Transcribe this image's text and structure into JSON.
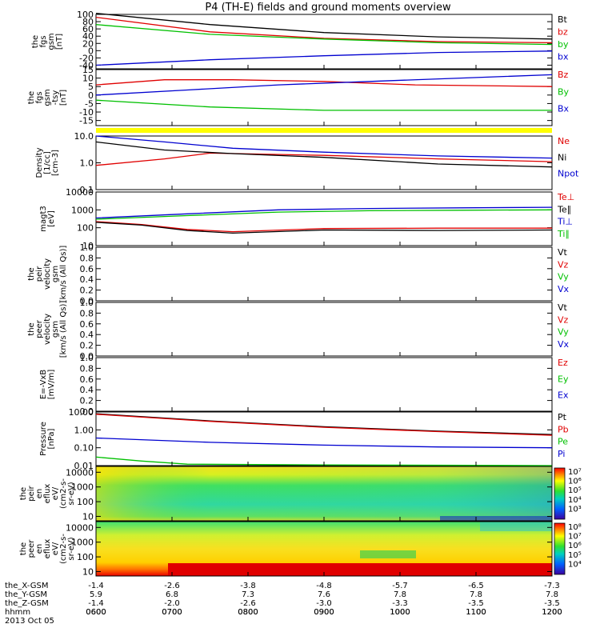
{
  "title": "P4 (TH-E) fields and ground moments overview",
  "colors": {
    "black": "#000000",
    "red": "#e00000",
    "green": "#00c000",
    "blue": "#0000d0",
    "yellow": "#ffff00"
  },
  "chart_data": {
    "type": "line",
    "time_ticks": [
      "0600",
      "0700",
      "0800",
      "0900",
      "1000",
      "1100",
      "1200"
    ],
    "ephemeris": [
      {
        "label": "the_X-GSM",
        "values": [
          "-1.4",
          "-2.6",
          "-3.8",
          "-4.8",
          "-5.7",
          "-6.5",
          "-7.3"
        ]
      },
      {
        "label": "the_Y-GSM",
        "values": [
          "5.9",
          "6.8",
          "7.3",
          "7.6",
          "7.8",
          "7.8",
          "7.8"
        ]
      },
      {
        "label": "the_Z-GSM",
        "values": [
          "-1.4",
          "-2.0",
          "-2.6",
          "-3.0",
          "-3.3",
          "-3.5",
          "-3.5"
        ]
      },
      {
        "label": "hhmm",
        "values": []
      }
    ],
    "date": "2013 Oct 05",
    "panels": [
      {
        "ylabel": [
          "the",
          "fgs",
          "gsm",
          "[nT]"
        ],
        "scale": "linear",
        "ylim": [
          -50,
          100
        ],
        "ticks": [
          {
            "v": 100,
            "l": "100"
          },
          {
            "v": 80,
            "l": "80"
          },
          {
            "v": 60,
            "l": "60"
          },
          {
            "v": 40,
            "l": "40"
          },
          {
            "v": 20,
            "l": "20"
          },
          {
            "v": 0,
            "l": "0"
          },
          {
            "v": -20,
            "l": "-20"
          },
          {
            "v": -40,
            "l": "-40"
          }
        ],
        "series": [
          {
            "name": "Bt",
            "color": "#000000",
            "x": [
              0,
              0.25,
              0.5,
              0.75,
              1
            ],
            "y": [
              103,
              72,
              50,
              38,
              32
            ]
          },
          {
            "name": "bz",
            "color": "#e00000",
            "x": [
              0,
              0.25,
              0.5,
              0.75,
              1
            ],
            "y": [
              92,
              52,
              34,
              25,
              22
            ]
          },
          {
            "name": "by",
            "color": "#00c000",
            "x": [
              0,
              0.25,
              0.5,
              0.75,
              1
            ],
            "y": [
              72,
              45,
              32,
              22,
              17
            ]
          },
          {
            "name": "bx",
            "color": "#0000d0",
            "x": [
              0,
              0.25,
              0.5,
              0.75,
              1
            ],
            "y": [
              -40,
              -25,
              -14,
              -5,
              -1
            ]
          }
        ]
      },
      {
        "ylabel": [
          "the",
          "fgs",
          "gsm",
          "-tsy",
          "[nT]"
        ],
        "scale": "linear",
        "ylim": [
          -18,
          15
        ],
        "ticks": [
          {
            "v": 15,
            "l": "15"
          },
          {
            "v": 10,
            "l": "10"
          },
          {
            "v": 5,
            "l": "5"
          },
          {
            "v": 0,
            "l": "0"
          },
          {
            "v": -5,
            "l": "-5"
          },
          {
            "v": -10,
            "l": "-10"
          },
          {
            "v": -15,
            "l": "-15"
          }
        ],
        "series": [
          {
            "name": "Bz",
            "color": "#e00000",
            "x": [
              0,
              0.15,
              0.3,
              0.5,
              0.7,
              1
            ],
            "y": [
              6,
              9,
              9,
              8,
              6,
              5
            ]
          },
          {
            "name": "By",
            "color": "#00c000",
            "x": [
              0,
              0.25,
              0.5,
              0.75,
              1
            ],
            "y": [
              -3,
              -7,
              -9,
              -9,
              -9
            ]
          },
          {
            "name": "Bx",
            "color": "#0000d0",
            "x": [
              0,
              0.2,
              0.4,
              0.6,
              0.8,
              1
            ],
            "y": [
              0,
              3,
              6,
              8,
              10,
              12
            ]
          }
        ]
      },
      {
        "ylabel": [
          "Density",
          "[1/cc]",
          "[cm-3]"
        ],
        "scale": "log",
        "ylim": [
          0.1,
          10
        ],
        "ticks": [
          {
            "v": 10,
            "l": "10.0"
          },
          {
            "v": 1,
            "l": "1.0"
          },
          {
            "v": 0.1,
            "l": "0.1"
          }
        ],
        "series": [
          {
            "name": "Ne",
            "color": "#e00000",
            "x": [
              0,
              0.15,
              0.25,
              0.5,
              0.75,
              1
            ],
            "y": [
              0.8,
              1.4,
              2.3,
              1.9,
              1.4,
              1.1
            ]
          },
          {
            "name": "Ni",
            "color": "#000000",
            "x": [
              0,
              0.15,
              0.3,
              0.5,
              0.75,
              1
            ],
            "y": [
              6,
              3,
              2.2,
              1.6,
              0.9,
              0.7
            ]
          },
          {
            "name": "Npot",
            "color": "#0000d0",
            "x": [
              0,
              0.15,
              0.3,
              0.5,
              0.75,
              1
            ],
            "y": [
              10,
              6,
              3.5,
              2.5,
              1.8,
              1.5
            ]
          }
        ]
      },
      {
        "ylabel": [
          "magt3",
          "[eV]"
        ],
        "scale": "log",
        "ylim": [
          10,
          10000
        ],
        "ticks": [
          {
            "v": 10000,
            "l": "10000"
          },
          {
            "v": 1000,
            "l": "1000"
          },
          {
            "v": 100,
            "l": "100"
          },
          {
            "v": 10,
            "l": "10"
          }
        ],
        "series": [
          {
            "name": "Te⊥",
            "color": "#e00000",
            "x": [
              0,
              0.1,
              0.2,
              0.3,
              0.5,
              0.75,
              1
            ],
            "y": [
              220,
              150,
              80,
              60,
              90,
              95,
              95
            ]
          },
          {
            "name": "Te∥",
            "color": "#000000",
            "x": [
              0,
              0.1,
              0.2,
              0.3,
              0.5,
              0.75,
              1
            ],
            "y": [
              200,
              140,
              70,
              50,
              75,
              70,
              75
            ]
          },
          {
            "name": "Ti⊥",
            "color": "#0000d0",
            "x": [
              0,
              0.2,
              0.4,
              0.6,
              0.8,
              1
            ],
            "y": [
              350,
              600,
              1000,
              1200,
              1300,
              1400
            ]
          },
          {
            "name": "Ti∥",
            "color": "#00c000",
            "x": [
              0,
              0.2,
              0.4,
              0.6,
              0.8,
              1
            ],
            "y": [
              300,
              480,
              750,
              900,
              950,
              1000
            ]
          }
        ]
      },
      {
        "ylabel": [
          "the",
          "peir",
          "velocity",
          "gsm",
          "[km/s (All Qs)]"
        ],
        "scale": "linear",
        "ylim": [
          0,
          1
        ],
        "ticks": [
          {
            "v": 1,
            "l": "1.0"
          },
          {
            "v": 0.8,
            "l": "0.8"
          },
          {
            "v": 0.6,
            "l": "0.6"
          },
          {
            "v": 0.4,
            "l": "0.4"
          },
          {
            "v": 0.2,
            "l": "0.2"
          },
          {
            "v": 0,
            "l": "0.0"
          }
        ],
        "series": [
          {
            "name": "Vt",
            "color": "#000000",
            "x": [],
            "y": []
          },
          {
            "name": "Vz",
            "color": "#e00000",
            "x": [],
            "y": []
          },
          {
            "name": "Vy",
            "color": "#00c000",
            "x": [],
            "y": []
          },
          {
            "name": "Vx",
            "color": "#0000d0",
            "x": [],
            "y": []
          }
        ]
      },
      {
        "ylabel": [
          "the",
          "peer",
          "velocity",
          "gsm",
          "[km/s (All Qs)]"
        ],
        "scale": "linear",
        "ylim": [
          0,
          1
        ],
        "ticks": [
          {
            "v": 1,
            "l": "1.0"
          },
          {
            "v": 0.8,
            "l": "0.8"
          },
          {
            "v": 0.6,
            "l": "0.6"
          },
          {
            "v": 0.4,
            "l": "0.4"
          },
          {
            "v": 0.2,
            "l": "0.2"
          },
          {
            "v": 0,
            "l": "0.0"
          }
        ],
        "series": [
          {
            "name": "Vt",
            "color": "#000000",
            "x": [],
            "y": []
          },
          {
            "name": "Vz",
            "color": "#e00000",
            "x": [],
            "y": []
          },
          {
            "name": "Vy",
            "color": "#00c000",
            "x": [],
            "y": []
          },
          {
            "name": "Vx",
            "color": "#0000d0",
            "x": [],
            "y": []
          }
        ]
      },
      {
        "ylabel": [
          "E=-VxB",
          "[mV/m]"
        ],
        "scale": "linear",
        "ylim": [
          0,
          1
        ],
        "ticks": [
          {
            "v": 1,
            "l": "1.0"
          },
          {
            "v": 0.8,
            "l": "0.8"
          },
          {
            "v": 0.6,
            "l": "0.6"
          },
          {
            "v": 0.4,
            "l": "0.4"
          },
          {
            "v": 0.2,
            "l": "0.2"
          },
          {
            "v": 0,
            "l": "0.0"
          }
        ],
        "series": [
          {
            "name": "Ez",
            "color": "#e00000",
            "x": [],
            "y": []
          },
          {
            "name": "Ey",
            "color": "#00c000",
            "x": [],
            "y": []
          },
          {
            "name": "Ex",
            "color": "#0000d0",
            "x": [],
            "y": []
          }
        ]
      },
      {
        "ylabel": [
          "Pressure",
          "[nPa]"
        ],
        "scale": "log",
        "ylim": [
          0.01,
          10
        ],
        "ticks": [
          {
            "v": 10,
            "l": "10.00"
          },
          {
            "v": 1,
            "l": "1.00"
          },
          {
            "v": 0.1,
            "l": "0.10"
          },
          {
            "v": 0.01,
            "l": "0.01"
          }
        ],
        "series": [
          {
            "name": "Pt",
            "color": "#000000",
            "x": [
              0,
              0.25,
              0.5,
              0.75,
              1
            ],
            "y": [
              8,
              3.2,
              1.5,
              0.85,
              0.55
            ]
          },
          {
            "name": "Pb",
            "color": "#e00000",
            "x": [
              0,
              0.25,
              0.5,
              0.75,
              1
            ],
            "y": [
              7.5,
              3,
              1.4,
              0.8,
              0.5
            ]
          },
          {
            "name": "Pe",
            "color": "#00c000",
            "x": [
              0,
              0.1,
              0.2,
              0.5,
              1
            ],
            "y": [
              0.03,
              0.018,
              0.012,
              0.011,
              0.01
            ]
          },
          {
            "name": "Pi",
            "color": "#0000d0",
            "x": [
              0,
              0.25,
              0.5,
              0.75,
              1
            ],
            "y": [
              0.35,
              0.2,
              0.14,
              0.11,
              0.1
            ]
          }
        ]
      },
      {
        "ylabel": [
          "the",
          "peir",
          "en",
          "eflux",
          "eV/",
          "(cm2-s-",
          "sr-eV)"
        ],
        "scale": "log",
        "ylim": [
          5,
          25000
        ],
        "ticks": [
          {
            "v": 10000,
            "l": "10000"
          },
          {
            "v": 1000,
            "l": "1000"
          },
          {
            "v": 100,
            "l": "100"
          },
          {
            "v": 10,
            "l": "10"
          }
        ],
        "heatmap": "ion",
        "colorbar": {
          "labels": [
            "10⁷",
            "10⁶",
            "10⁵",
            "10⁴",
            "10³"
          ]
        }
      },
      {
        "ylabel": [
          "the",
          "peer",
          "en",
          "eflux",
          "eV/",
          "(cm2-s-",
          "sr-eV)"
        ],
        "scale": "log",
        "ylim": [
          5,
          25000
        ],
        "ticks": [
          {
            "v": 10000,
            "l": "10000"
          },
          {
            "v": 1000,
            "l": "1000"
          },
          {
            "v": 100,
            "l": "100"
          },
          {
            "v": 10,
            "l": "10"
          }
        ],
        "heatmap": "electron",
        "colorbar": {
          "labels": [
            "10⁸",
            "10⁷",
            "10⁶",
            "10⁵",
            "10⁴"
          ]
        }
      }
    ]
  }
}
